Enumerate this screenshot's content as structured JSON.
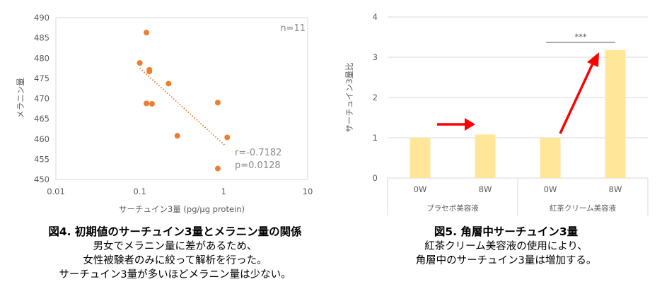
{
  "chart_data": [
    {
      "type": "scatter",
      "n_label": "n=11",
      "xlabel": "サーチュイン3量 (pg/µg protein)",
      "ylabel": "メラニン量",
      "xscale": "log",
      "xlim": [
        0.01,
        10
      ],
      "ylim": [
        450,
        490
      ],
      "xticks": [
        "0.01",
        "0.1",
        "1",
        "10"
      ],
      "yticks": [
        "450",
        "455",
        "460",
        "465",
        "470",
        "475",
        "480",
        "485",
        "490"
      ],
      "points": [
        {
          "x": 0.1,
          "y": 478.8
        },
        {
          "x": 0.12,
          "y": 486.3
        },
        {
          "x": 0.13,
          "y": 477.1
        },
        {
          "x": 0.13,
          "y": 476.7
        },
        {
          "x": 0.12,
          "y": 468.8
        },
        {
          "x": 0.14,
          "y": 468.7
        },
        {
          "x": 0.22,
          "y": 473.7
        },
        {
          "x": 0.28,
          "y": 460.8
        },
        {
          "x": 0.85,
          "y": 469.0
        },
        {
          "x": 1.1,
          "y": 460.4
        },
        {
          "x": 0.85,
          "y": 452.7
        }
      ],
      "trendline": {
        "style": "dotted",
        "x": [
          0.1,
          1.05
        ],
        "y": [
          477.5,
          458.3
        ]
      },
      "r_label": "r=-0.7182",
      "p_label": "p=0.0128",
      "grid": false,
      "colors": {
        "points": "#ed7d31",
        "trend": "#ed7d31"
      }
    },
    {
      "type": "bar",
      "ylabel": "サーチュイン3量比",
      "ylim": [
        0,
        4
      ],
      "yticks": [
        "0",
        "1",
        "2",
        "3",
        "4"
      ],
      "categories": [
        "0W",
        "8W",
        "0W",
        "8W"
      ],
      "groups": [
        "プラセボ美容液",
        "紅茶クリーム美容液"
      ],
      "values": [
        1.0,
        1.08,
        1.0,
        3.18
      ],
      "significance": {
        "label": "***",
        "between": [
          2,
          3
        ]
      },
      "arrows": "red arrows showing change from 0W to 8W",
      "colors": {
        "bars": "#ffe699",
        "arrows": "#ff0000"
      }
    }
  ],
  "captions": {
    "left": {
      "title": "図4. 初期値のサーチュイン3量とメラニン量の関係",
      "lines": [
        "男女でメラニン量に差があるため、",
        "女性被験者のみに絞って解析を行った。",
        "サーチュイン3量が多いほどメラニン量は少ない。"
      ]
    },
    "right": {
      "title": "図5. 角層中サーチュイン3量",
      "lines": [
        "紅茶クリーム美容液の使用により、",
        "角層中のサーチュイン3量は増加する。"
      ]
    }
  }
}
